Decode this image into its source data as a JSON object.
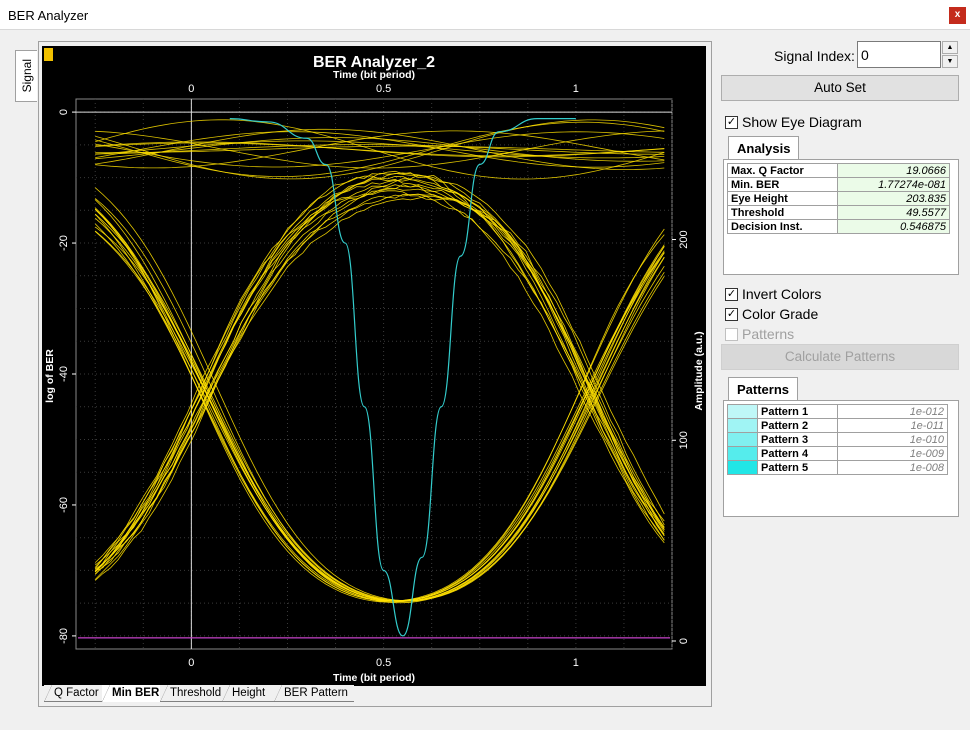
{
  "window": {
    "title": "BER Analyzer",
    "close_label": "x"
  },
  "side_tab": {
    "label": "Signal"
  },
  "plot": {
    "title": "BER Analyzer_2",
    "top_axis_label": "Time (bit period)",
    "bottom_axis_label": "Time (bit period)",
    "left_axis_label": "log of BER",
    "right_axis_label": "Amplitude (a.u.)",
    "x_ticks": [
      "0",
      "0.5",
      "1"
    ],
    "left_ticks": [
      "0",
      "-20",
      "-40",
      "-60",
      "-80"
    ],
    "right_ticks": [
      "200",
      "100",
      "0"
    ],
    "colors": {
      "background": "#000000",
      "eye": "#ffe000",
      "ber": "#33cccc",
      "grid": "#3a3a3a"
    }
  },
  "chart_data": {
    "type": "line",
    "title": "BER Analyzer_2",
    "xlabel": "Time (bit period)",
    "ylabel": "log of BER",
    "y2label": "Amplitude (a.u.)",
    "xlim": [
      -0.3,
      1.25
    ],
    "ylim": [
      -82,
      2
    ],
    "y2lim": [
      0,
      270
    ],
    "series": [
      {
        "color": "#33cccc",
        "x": [
          0.1,
          0.2,
          0.3,
          0.35,
          0.4,
          0.45,
          0.5,
          0.55,
          0.6,
          0.65,
          0.7,
          0.75,
          0.8,
          0.9,
          1.0
        ],
        "y": [
          -1,
          -1.5,
          -4,
          -8,
          -20,
          -45,
          -70,
          -80,
          -68,
          -45,
          -22,
          -8,
          -3,
          -1,
          -1
        ]
      }
    ],
    "eye_diagram": {
      "crossings_x": [
        0.04,
        1.04
      ],
      "decision_instant": 0.546875,
      "threshold": 49.5577
    }
  },
  "bottom_tabs": [
    {
      "label": "Q Factor",
      "active": false
    },
    {
      "label": "Min BER",
      "active": true
    },
    {
      "label": "Threshold",
      "active": false
    },
    {
      "label": "Height",
      "active": false
    },
    {
      "label": "BER Pattern",
      "active": false
    }
  ],
  "panel": {
    "signal_index_label": "Signal Index:",
    "signal_index_value": "0",
    "auto_set_label": "Auto Set",
    "show_eye_label": "Show Eye Diagram",
    "analysis_tab_label": "Analysis",
    "analysis": [
      {
        "key": "Max. Q Factor",
        "value": "19.0666"
      },
      {
        "key": "Min. BER",
        "value": "1.77274e-081"
      },
      {
        "key": "Eye Height",
        "value": "203.835"
      },
      {
        "key": "Threshold",
        "value": "49.5577"
      },
      {
        "key": "Decision Inst.",
        "value": "0.546875"
      }
    ],
    "invert_colors_label": "Invert Colors",
    "color_grade_label": "Color Grade",
    "patterns_check_label": "Patterns",
    "calc_patterns_label": "Calculate Patterns",
    "patterns_tab_label": "Patterns",
    "patterns": [
      {
        "name": "Pattern 1",
        "value": "1e-012",
        "color": "#bff7f7"
      },
      {
        "name": "Pattern 2",
        "value": "1e-011",
        "color": "#a0f4f4"
      },
      {
        "name": "Pattern 3",
        "value": "1e-010",
        "color": "#80f0f0"
      },
      {
        "name": "Pattern 4",
        "value": "1e-009",
        "color": "#55ecec"
      },
      {
        "name": "Pattern 5",
        "value": "1e-008",
        "color": "#22e6e6"
      }
    ]
  }
}
